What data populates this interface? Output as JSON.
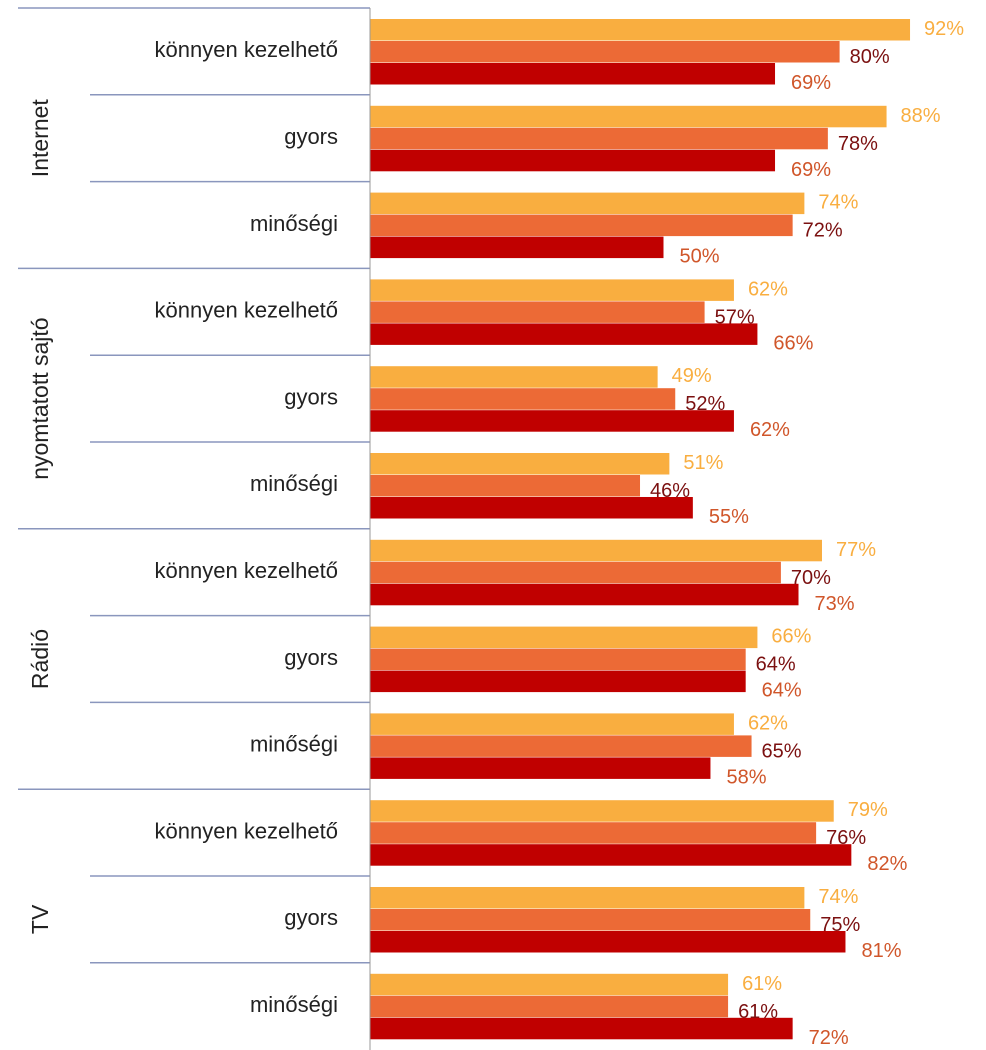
{
  "chart_data": {
    "type": "bar",
    "orientation": "horizontal",
    "groups": [
      {
        "name": "Internet",
        "categories": [
          "könnyen kezelhető",
          "gyors",
          "minőségi"
        ]
      },
      {
        "name": "nyomtatott sajtó",
        "categories": [
          "könnyen kezelhető",
          "gyors",
          "minőségi"
        ]
      },
      {
        "name": "Rádió",
        "categories": [
          "könnyen kezelhető",
          "gyors",
          "minőségi"
        ]
      },
      {
        "name": "TV",
        "categories": [
          "könnyen kezelhető",
          "gyors",
          "minőségi"
        ]
      }
    ],
    "xlim": [
      0,
      100
    ],
    "series": [
      {
        "color": "#f9ae40",
        "label_color": "#f9ae40",
        "values": [
          92,
          88,
          74,
          62,
          49,
          51,
          77,
          66,
          62,
          79,
          74,
          61
        ],
        "value_labels": [
          "92%",
          "88%",
          "74%",
          "62%",
          "49%",
          "51%",
          "77%",
          "66%",
          "62%",
          "79%",
          "74%",
          "61%"
        ]
      },
      {
        "color": "#ec6a36",
        "label_color": "#7b1010",
        "values": [
          80,
          78,
          72,
          57,
          52,
          46,
          70,
          64,
          65,
          76,
          75,
          61
        ],
        "value_labels": [
          "80%",
          "78%",
          "72%",
          "57%",
          "52%",
          "46%",
          "70%",
          "64%",
          "65%",
          "76%",
          "75%",
          "61%"
        ]
      },
      {
        "color": "#c00000",
        "label_color": "#d0562a",
        "values": [
          69,
          69,
          50,
          66,
          62,
          55,
          73,
          64,
          58,
          82,
          81,
          72
        ],
        "value_labels": [
          "69%",
          "69%",
          "50%",
          "66%",
          "62%",
          "55%",
          "73%",
          "64%",
          "58%",
          "82%",
          "81%",
          "72%"
        ]
      }
    ]
  }
}
